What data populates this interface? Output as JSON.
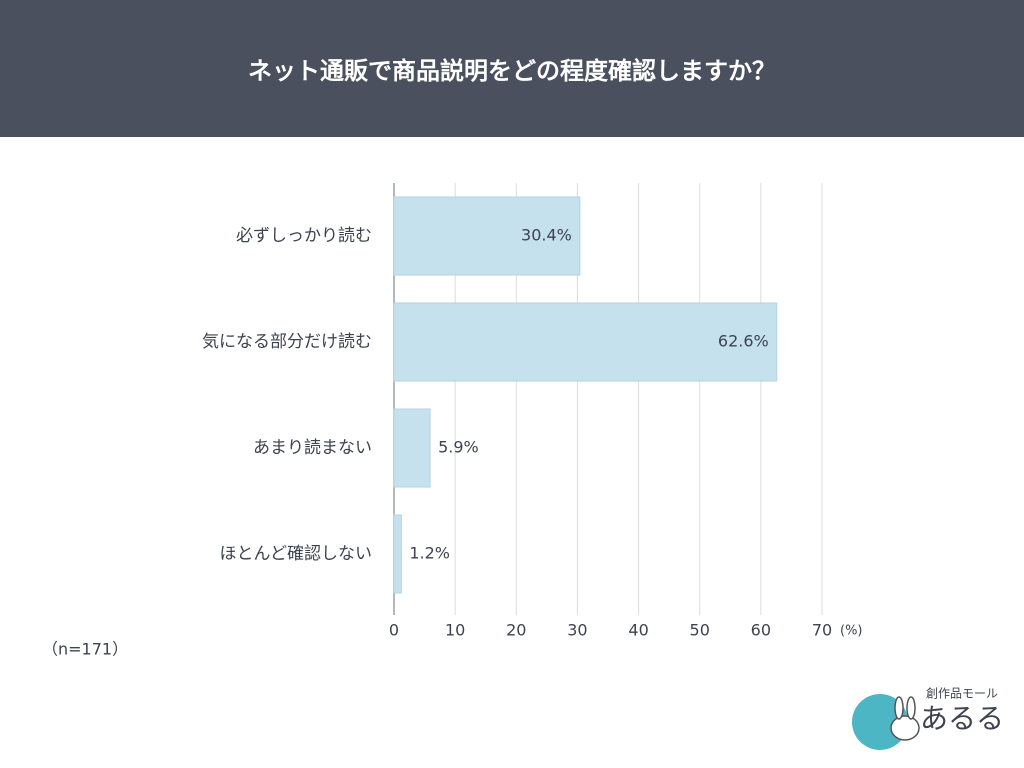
{
  "chart_data": {
    "type": "barh",
    "title": "ネット通販で商品説明をどの程度確認しますか？",
    "categories": [
      "必ずしっかり読む",
      "気になる部分だけ読む",
      "あまり読まない",
      "ほとんど確認しない"
    ],
    "values": [
      30.4,
      62.6,
      5.9,
      1.2
    ],
    "value_labels": [
      "30.4%",
      "62.6%",
      "5.9%",
      "1.2%"
    ],
    "color": "#c6e1ee",
    "xlim": [
      0,
      70
    ],
    "xticks": [
      0,
      10,
      20,
      30,
      40,
      50,
      60,
      70
    ],
    "x_unit": "(%)",
    "note": "（n=171）",
    "grid": true
  },
  "logo": {
    "tagline": "創作品モール",
    "name": "あるる"
  }
}
